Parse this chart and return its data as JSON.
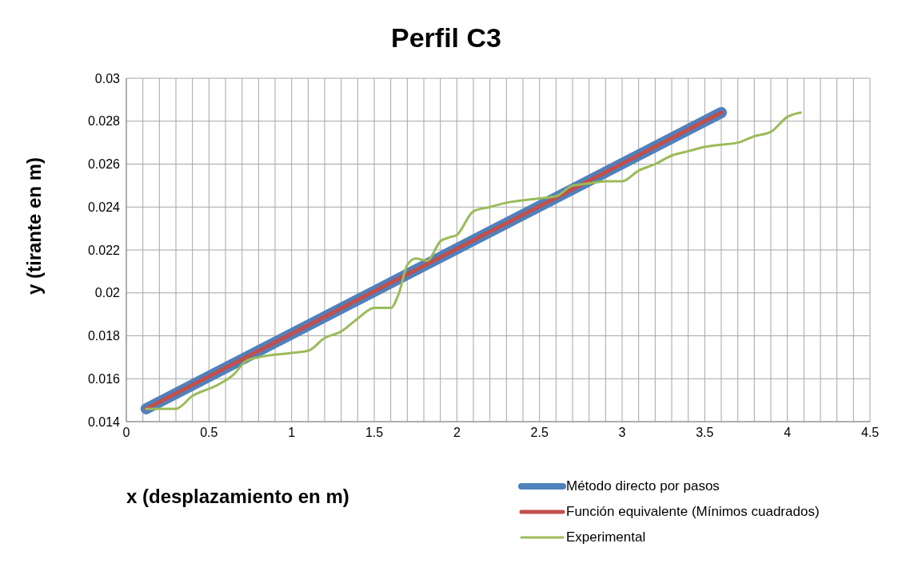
{
  "chart_data": {
    "type": "line",
    "title": "Perfil C3",
    "xlabel": "x (desplazamiento en m)",
    "ylabel": "y (tirante en m)",
    "xlim": [
      0,
      4.5
    ],
    "ylim": [
      0.014,
      0.03
    ],
    "xticks": [
      0,
      {
        "value": 0.1,
        "label": null
      },
      {
        "value": 0.2,
        "label": null
      },
      {
        "value": 0.3,
        "label": null
      },
      {
        "value": 0.4,
        "label": null
      },
      0.5,
      {
        "value": 0.6,
        "label": null
      },
      {
        "value": 0.7,
        "label": null
      },
      {
        "value": 0.8,
        "label": null
      },
      {
        "value": 0.9,
        "label": null
      },
      1,
      {
        "value": 1.1,
        "label": null
      },
      {
        "value": 1.2,
        "label": null
      },
      {
        "value": 1.3,
        "label": null
      },
      {
        "value": 1.4,
        "label": null
      },
      1.5,
      {
        "value": 1.6,
        "label": null
      },
      {
        "value": 1.7,
        "label": null
      },
      {
        "value": 1.8,
        "label": null
      },
      {
        "value": 1.9,
        "label": null
      },
      2,
      {
        "value": 2.1,
        "label": null
      },
      {
        "value": 2.2,
        "label": null
      },
      {
        "value": 2.3,
        "label": null
      },
      {
        "value": 2.4,
        "label": null
      },
      2.5,
      {
        "value": 2.6,
        "label": null
      },
      {
        "value": 2.7,
        "label": null
      },
      {
        "value": 2.8,
        "label": null
      },
      {
        "value": 2.9,
        "label": null
      },
      3,
      {
        "value": 3.1,
        "label": null
      },
      {
        "value": 3.2,
        "label": null
      },
      {
        "value": 3.3,
        "label": null
      },
      {
        "value": 3.4,
        "label": null
      },
      3.5,
      {
        "value": 3.6,
        "label": null
      },
      {
        "value": 3.7,
        "label": null
      },
      {
        "value": 3.8,
        "label": null
      },
      {
        "value": 3.9,
        "label": null
      },
      4,
      {
        "value": 4.1,
        "label": null
      },
      {
        "value": 4.2,
        "label": null
      },
      {
        "value": 4.3,
        "label": null
      },
      {
        "value": 4.4,
        "label": null
      },
      4.5
    ],
    "yticks": [
      0.014,
      0.016,
      0.018,
      0.02,
      0.022,
      0.024,
      0.026,
      0.028,
      0.03
    ],
    "grid": true,
    "legend": "bottom right",
    "marker": "none",
    "line_style": "solid",
    "series": [
      {
        "name": "Método directo por pasos",
        "color": "#4f81bd",
        "x": [
          0.12,
          3.6
        ],
        "values": [
          0.0146,
          0.0284
        ]
      },
      {
        "name": "Función equivalente (Mínimos cuadrados)",
        "color": "#c0504d",
        "x": [
          0.12,
          3.6
        ],
        "values": [
          0.0146,
          0.0284
        ]
      },
      {
        "name": "Experimental",
        "color": "#9bbb59",
        "x": [
          0.12,
          0.3,
          0.4,
          0.55,
          0.65,
          0.72,
          0.8,
          1.0,
          1.1,
          1.2,
          1.3,
          1.4,
          1.5,
          1.6,
          1.65,
          1.7,
          1.75,
          1.82,
          1.9,
          1.96,
          2.0,
          2.1,
          2.2,
          2.3,
          2.5,
          2.6,
          2.7,
          2.8,
          2.9,
          3.0,
          3.1,
          3.2,
          3.3,
          3.4,
          3.5,
          3.6,
          3.7,
          3.8,
          3.9,
          4.0,
          4.08
        ],
        "values": [
          0.0146,
          0.0146,
          0.0152,
          0.0157,
          0.0162,
          0.0168,
          0.017,
          0.0172,
          0.0173,
          0.0179,
          0.0182,
          0.0188,
          0.0193,
          0.0193,
          0.02,
          0.0213,
          0.0216,
          0.0215,
          0.0224,
          0.0226,
          0.0227,
          0.0238,
          0.024,
          0.0242,
          0.0244,
          0.0245,
          0.025,
          0.0251,
          0.0252,
          0.0252,
          0.0257,
          0.026,
          0.0264,
          0.0266,
          0.0268,
          0.0269,
          0.027,
          0.0273,
          0.0275,
          0.0282,
          0.0284
        ]
      }
    ]
  }
}
